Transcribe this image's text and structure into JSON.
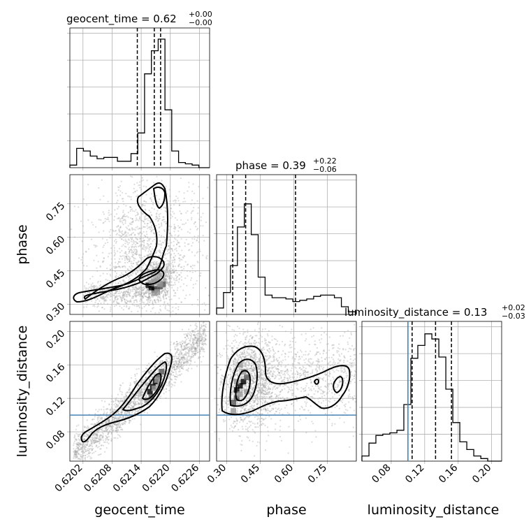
{
  "chart_data": {
    "type": "corner",
    "parameters": [
      "geocent_time",
      "phase",
      "luminosity_distance"
    ],
    "titles": [
      {
        "param": "geocent_time",
        "text": "geocent_time = 0.62",
        "sup": "+0.00",
        "sub": "−0.00",
        "median": 0.62167,
        "q16": 0.62132,
        "q84": 0.6218
      },
      {
        "param": "phase",
        "text": "phase = 0.39",
        "sup": "+0.22",
        "sub": "−0.06",
        "median": 0.385,
        "q16": 0.327,
        "q84": 0.608
      },
      {
        "param": "luminosity_distance",
        "text": "luminosity_distance = 0.13",
        "sup": "+0.02",
        "sub": "−0.03",
        "median": 0.133,
        "q16": 0.105,
        "q84": 0.152
      }
    ],
    "axes": {
      "geocent_time": {
        "range": [
          0.61993,
          0.62281
        ],
        "ticks": [
          "0.6202",
          "0.6208",
          "0.6214",
          "0.6220",
          "0.6226"
        ],
        "tick_values": [
          0.6202,
          0.6208,
          0.6214,
          0.622,
          0.6226
        ],
        "label": "geocent_time"
      },
      "phase": {
        "range": [
          0.255,
          0.88
        ],
        "ticks": [
          "0.30",
          "0.45",
          "0.60",
          "0.75"
        ],
        "tick_values": [
          0.3,
          0.45,
          0.6,
          0.75
        ],
        "label": "phase"
      },
      "luminosity_distance": {
        "range": [
          0.045,
          0.212
        ],
        "ticks": [
          "0.08",
          "0.12",
          "0.16",
          "0.20"
        ],
        "tick_values": [
          0.08,
          0.12,
          0.16,
          0.2
        ],
        "label": "luminosity_distance"
      }
    },
    "truth": {
      "luminosity_distance": 0.1
    },
    "histograms": {
      "geocent_time": {
        "edges": [
          0.61993,
          0.62007,
          0.62021,
          0.62035,
          0.62049,
          0.62063,
          0.62077,
          0.62091,
          0.62105,
          0.62119,
          0.62133,
          0.62147,
          0.62161,
          0.62175,
          0.62189,
          0.62203,
          0.62217,
          0.62231,
          0.62245,
          0.62259,
          0.62281
        ],
        "counts": [
          0.02,
          0.15,
          0.13,
          0.09,
          0.07,
          0.08,
          0.08,
          0.05,
          0.05,
          0.11,
          0.27,
          0.73,
          0.91,
          1.0,
          0.45,
          0.13,
          0.04,
          0.03,
          0.02,
          0.0
        ]
      },
      "phase": {
        "edges": [
          0.255,
          0.286,
          0.317,
          0.348,
          0.379,
          0.41,
          0.441,
          0.472,
          0.503,
          0.534,
          0.565,
          0.596,
          0.627,
          0.658,
          0.689,
          0.72,
          0.751,
          0.782,
          0.813,
          0.844,
          0.88
        ],
        "counts": [
          0.05,
          0.17,
          0.38,
          0.68,
          0.86,
          0.62,
          0.29,
          0.15,
          0.13,
          0.13,
          0.12,
          0.1,
          0.11,
          0.12,
          0.14,
          0.15,
          0.15,
          0.13,
          0.06,
          0.02
        ]
      },
      "luminosity_distance": {
        "edges": [
          0.045,
          0.0534,
          0.0617,
          0.07,
          0.0784,
          0.0868,
          0.0951,
          0.1035,
          0.1118,
          0.1202,
          0.1286,
          0.1369,
          0.1453,
          0.1536,
          0.162,
          0.1703,
          0.1787,
          0.1871,
          0.1954,
          0.212
        ],
        "counts": [
          0.04,
          0.14,
          0.2,
          0.21,
          0.22,
          0.24,
          0.44,
          0.8,
          0.9,
          0.99,
          0.95,
          0.81,
          0.56,
          0.3,
          0.15,
          0.09,
          0.04,
          0.02,
          0.0
        ]
      }
    },
    "points": {
      "phase_vs_geocent_time": {
        "x": [
          0.62155,
          0.62161,
          0.62167,
          0.62173,
          0.62179,
          0.62185,
          0.62161,
          0.62167,
          0.62173,
          0.62179,
          0.62167,
          0.62173
        ],
        "y": [
          0.385,
          0.375,
          0.365,
          0.37,
          0.38,
          0.39,
          0.395,
          0.4,
          0.41,
          0.39,
          0.35,
          0.355
        ]
      },
      "luminosity_distance_vs_geocent_time": {
        "x": [
          0.62158,
          0.62164,
          0.6217,
          0.62176,
          0.62182,
          0.62161,
          0.62167,
          0.62173,
          0.62179,
          0.62152
        ],
        "y": [
          0.128,
          0.134,
          0.14,
          0.146,
          0.152,
          0.122,
          0.132,
          0.142,
          0.136,
          0.118
        ]
      },
      "luminosity_distance_vs_phase": {
        "x": [
          0.345,
          0.36,
          0.375,
          0.39,
          0.33,
          0.345,
          0.36,
          0.375,
          0.33,
          0.36,
          0.39,
          0.345
        ],
        "y": [
          0.13,
          0.135,
          0.14,
          0.145,
          0.115,
          0.12,
          0.125,
          0.152,
          0.105,
          0.16,
          0.128,
          0.14
        ]
      }
    }
  }
}
